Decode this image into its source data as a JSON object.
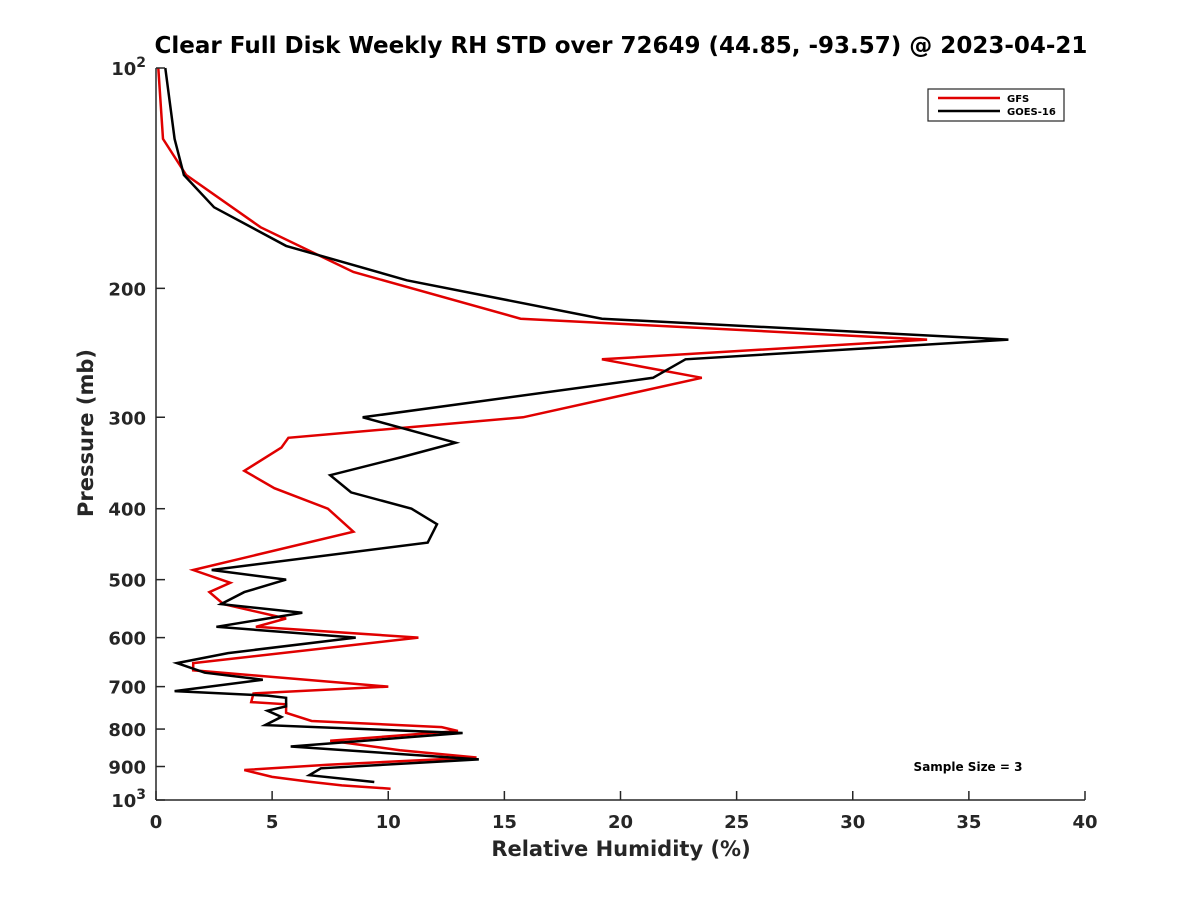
{
  "chart_data": {
    "type": "line",
    "title": "Clear Full Disk Weekly RH STD over 72649 (44.85, -93.57) @ 2023-04-21",
    "xlabel": "Relative Humidity (%)",
    "ylabel": "Pressure (mb)",
    "xlim": [
      0,
      40
    ],
    "ylim": [
      100,
      1000
    ],
    "y_scale": "log",
    "y_reversed": true,
    "x_ticks": [
      0,
      5,
      10,
      15,
      20,
      25,
      30,
      35,
      40
    ],
    "y_ticks": [
      {
        "value": 100,
        "base": "10",
        "exp": "2"
      },
      {
        "value": 200,
        "label": "200"
      },
      {
        "value": 300,
        "label": "300"
      },
      {
        "value": 400,
        "label": "400"
      },
      {
        "value": 500,
        "label": "500"
      },
      {
        "value": 600,
        "label": "600"
      },
      {
        "value": 700,
        "label": "700"
      },
      {
        "value": 800,
        "label": "800"
      },
      {
        "value": 900,
        "label": "900"
      },
      {
        "value": 1000,
        "base": "10",
        "exp": "3"
      }
    ],
    "grid": false,
    "legend_position": "top-right",
    "annotation": "Sample Size = 3",
    "series": [
      {
        "name": "GFS",
        "color": "#e00000",
        "points": [
          [
            0.1,
            100
          ],
          [
            0.3,
            125
          ],
          [
            1.3,
            140
          ],
          [
            4.5,
            165
          ],
          [
            8.5,
            190
          ],
          [
            15.7,
            220
          ],
          [
            33.2,
            235
          ],
          [
            19.2,
            250
          ],
          [
            23.5,
            265
          ],
          [
            15.8,
            300
          ],
          [
            5.7,
            320
          ],
          [
            5.4,
            330
          ],
          [
            3.8,
            355
          ],
          [
            5.1,
            375
          ],
          [
            7.4,
            400
          ],
          [
            8.5,
            430
          ],
          [
            1.6,
            485
          ],
          [
            3.2,
            505
          ],
          [
            2.3,
            520
          ],
          [
            2.9,
            540
          ],
          [
            5.6,
            565
          ],
          [
            4.3,
            580
          ],
          [
            11.3,
            600
          ],
          [
            1.6,
            650
          ],
          [
            1.6,
            665
          ],
          [
            10.0,
            700
          ],
          [
            4.2,
            715
          ],
          [
            4.1,
            735
          ],
          [
            5.6,
            740
          ],
          [
            5.6,
            760
          ],
          [
            6.7,
            780
          ],
          [
            12.3,
            795
          ],
          [
            13.0,
            805
          ],
          [
            7.5,
            830
          ],
          [
            10.5,
            855
          ],
          [
            13.8,
            875
          ],
          [
            7.4,
            895
          ],
          [
            3.8,
            910
          ],
          [
            5.0,
            930
          ],
          [
            6.7,
            945
          ],
          [
            8.0,
            955
          ],
          [
            10.1,
            965
          ]
        ]
      },
      {
        "name": "GOES-16",
        "color": "#000000",
        "points": [
          [
            0.4,
            100
          ],
          [
            0.8,
            125
          ],
          [
            1.2,
            140
          ],
          [
            2.5,
            155
          ],
          [
            5.6,
            175
          ],
          [
            10.8,
            195
          ],
          [
            19.2,
            220
          ],
          [
            36.7,
            235
          ],
          [
            22.8,
            250
          ],
          [
            21.4,
            265
          ],
          [
            8.9,
            300
          ],
          [
            12.9,
            325
          ],
          [
            10.6,
            340
          ],
          [
            7.5,
            360
          ],
          [
            8.4,
            380
          ],
          [
            11.0,
            400
          ],
          [
            12.1,
            420
          ],
          [
            11.7,
            445
          ],
          [
            2.4,
            485
          ],
          [
            5.6,
            500
          ],
          [
            3.8,
            520
          ],
          [
            2.8,
            540
          ],
          [
            6.3,
            555
          ],
          [
            2.6,
            580
          ],
          [
            8.6,
            600
          ],
          [
            3.1,
            630
          ],
          [
            0.9,
            650
          ],
          [
            2.1,
            670
          ],
          [
            4.6,
            685
          ],
          [
            0.8,
            710
          ],
          [
            4.8,
            720
          ],
          [
            5.6,
            725
          ],
          [
            5.6,
            745
          ],
          [
            4.8,
            755
          ],
          [
            5.4,
            770
          ],
          [
            4.7,
            790
          ],
          [
            13.2,
            810
          ],
          [
            5.8,
            845
          ],
          [
            13.9,
            880
          ],
          [
            7.1,
            905
          ],
          [
            6.6,
            925
          ],
          [
            9.4,
            945
          ]
        ]
      }
    ]
  }
}
